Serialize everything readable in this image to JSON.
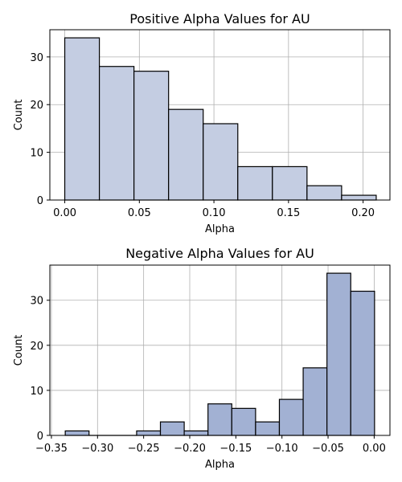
{
  "chart_data": [
    {
      "type": "bar",
      "title": "Positive Alpha Values for AU",
      "xlabel": "Alpha",
      "ylabel": "Count",
      "bar_color": "#c4cde2",
      "bin_edges": [
        0.0,
        0.0232,
        0.0464,
        0.0696,
        0.0928,
        0.116,
        0.1392,
        0.1624,
        0.1856,
        0.2088
      ],
      "values": [
        34,
        28,
        27,
        19,
        16,
        7,
        7,
        3,
        1
      ],
      "xlim": [
        -0.01,
        0.218
      ],
      "ylim": [
        0,
        35.7
      ],
      "xticks": [
        0.0,
        0.05,
        0.1,
        0.15,
        0.2
      ],
      "xtick_labels": [
        "0.00",
        "0.05",
        "0.10",
        "0.15",
        "0.20"
      ],
      "yticks": [
        0,
        10,
        20,
        30
      ],
      "ytick_labels": [
        "0",
        "10",
        "20",
        "30"
      ],
      "grid": true
    },
    {
      "type": "bar",
      "title": "Negative Alpha Values for AU",
      "xlabel": "Alpha",
      "ylabel": "Count",
      "bar_color": "#a2b1d3",
      "bin_edges": [
        -0.335,
        -0.3092,
        -0.2834,
        -0.2576,
        -0.2318,
        -0.206,
        -0.1802,
        -0.1544,
        -0.1286,
        -0.1028,
        -0.077,
        -0.0512,
        -0.0254,
        0.0004
      ],
      "values": [
        1,
        0,
        0,
        1,
        3,
        1,
        7,
        6,
        3,
        8,
        15,
        36,
        32
      ],
      "xlim": [
        -0.3517,
        0.0171
      ],
      "ylim": [
        0,
        37.8
      ],
      "xticks": [
        -0.35,
        -0.3,
        -0.25,
        -0.2,
        -0.15,
        -0.1,
        -0.05,
        0.0
      ],
      "xtick_labels": [
        "−0.35",
        "−0.30",
        "−0.25",
        "−0.20",
        "−0.15",
        "−0.10",
        "−0.05",
        "0.00"
      ],
      "yticks": [
        0,
        10,
        20,
        30
      ],
      "ytick_labels": [
        "0",
        "10",
        "20",
        "30"
      ],
      "grid": true
    }
  ]
}
